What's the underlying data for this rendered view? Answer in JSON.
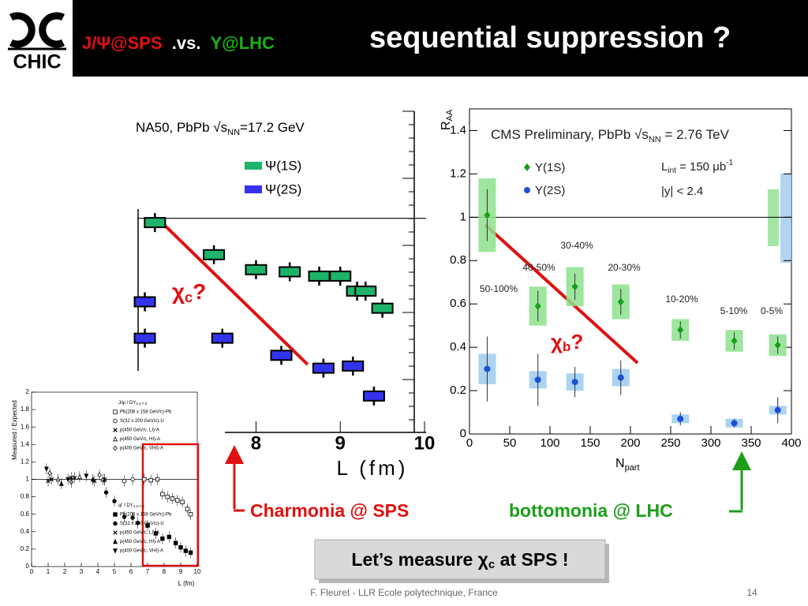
{
  "header": {
    "logo": "CHIC",
    "title_parts": [
      "J/Ψ@SPS",
      ".vs.",
      "Υ@LHC"
    ],
    "subtitle": "sequential suppression ?"
  },
  "chart_data": [
    {
      "type": "scatter",
      "title_parts": {
        "pre": "NA50, PbPb √s",
        "sub": "NN",
        "post": "=17.2 GeV"
      },
      "xlabel": "L (fm)",
      "xlim": [
        6.6,
        10
      ],
      "xticks": [
        8,
        9,
        10
      ],
      "ylim": [
        0,
        1.5
      ],
      "reference_line": 1,
      "series": [
        {
          "name": "Ψ(1S)",
          "color": "#1db36a",
          "x": [
            6.8,
            7.5,
            8.0,
            8.4,
            8.75,
            9.0,
            9.2,
            9.3,
            9.5
          ],
          "values": [
            0.98,
            0.83,
            0.76,
            0.75,
            0.73,
            0.73,
            0.66,
            0.66,
            0.58
          ]
        },
        {
          "name": "Ψ(2S)",
          "color": "#3333ee",
          "x": [
            6.68,
            6.68,
            7.6,
            8.3,
            8.8,
            9.15,
            9.4
          ],
          "values": [
            0.61,
            0.44,
            0.44,
            0.36,
            0.3,
            0.31,
            0.17
          ]
        }
      ],
      "annotation": {
        "chi": "χ",
        "sub": "c",
        "q": "?"
      }
    },
    {
      "type": "scatter",
      "title_parts": {
        "pre": "CMS Preliminary, PbPb √s",
        "sub": "NN",
        "post": " = 2.76 TeV"
      },
      "lumi": {
        "pre": "L",
        "sub": "int",
        "mid": " = 150 μb",
        "sup": "-1"
      },
      "rapidity": "|y| < 2.4",
      "ylabel": {
        "main": "R",
        "sub": "AA"
      },
      "xlabel": {
        "main": "N",
        "sub": "part"
      },
      "xlim": [
        0,
        400
      ],
      "xticks": [
        0,
        50,
        100,
        150,
        200,
        250,
        300,
        350,
        400
      ],
      "ylim": [
        0,
        1.5
      ],
      "yticks": [
        0,
        0.2,
        0.4,
        0.6,
        0.8,
        1,
        1.2,
        1.4
      ],
      "reference_line": 1,
      "centrality": [
        "50-100%",
        "40-50%",
        "30-40%",
        "20-30%",
        "10-20%",
        "5-10%",
        "0-5%"
      ],
      "series": [
        {
          "name": "Υ(1S)",
          "color": "#1a9e1a",
          "box_color": "#8de08d",
          "marker": "diamond",
          "x": [
            22,
            85,
            131,
            188,
            262,
            329,
            383
          ],
          "values": [
            1.01,
            0.59,
            0.68,
            0.61,
            0.48,
            0.43,
            0.41
          ],
          "errors": [
            0.12,
            0.07,
            0.06,
            0.06,
            0.04,
            0.04,
            0.04
          ],
          "sys": [
            0.17,
            0.09,
            0.09,
            0.08,
            0.05,
            0.05,
            0.05
          ]
        },
        {
          "name": "Υ(2S)",
          "color": "#1f4fd6",
          "box_color": "#9ccbf0",
          "marker": "circle",
          "x": [
            22,
            85,
            131,
            188,
            262,
            329,
            383
          ],
          "values": [
            0.3,
            0.25,
            0.24,
            0.26,
            0.07,
            0.05,
            0.11
          ],
          "errors": [
            0.15,
            0.12,
            0.07,
            0.08,
            0.03,
            0.02,
            0.06
          ],
          "sys": [
            0.07,
            0.04,
            0.04,
            0.04,
            0.02,
            0.02,
            0.02
          ]
        }
      ],
      "annotation": {
        "chi": "χ",
        "sub": "b",
        "q": "?"
      }
    },
    {
      "type": "scatter",
      "xlabel": "L (fm)",
      "ylabel": "Measured / Expected",
      "xlim": [
        0,
        10
      ],
      "xticks": [
        0,
        1,
        2,
        3,
        4,
        5,
        6,
        7,
        8,
        9,
        10
      ],
      "ylim": [
        0,
        2
      ],
      "yticks": [
        0,
        0.2,
        0.4,
        0.6,
        0.8,
        1,
        1.2,
        1.4,
        1.6,
        1.8,
        2
      ],
      "reference_line": 1,
      "legend_titles": [
        {
          "text": "J/ψ / DY",
          "sub": "4.2-7.0"
        },
        {
          "text": "ψ' / DY",
          "sub": "4.2-7.0"
        }
      ],
      "series": [
        {
          "name": "Pb(208 x 158 GeV/c)-Pb",
          "marker": "square",
          "filled": false,
          "x": [
            6.8,
            7.2,
            7.6,
            7.9,
            8.2,
            8.5,
            8.8,
            9.1,
            9.4,
            9.6
          ],
          "values": [
            1.0,
            0.99,
            1.0,
            0.83,
            0.8,
            0.78,
            0.76,
            0.74,
            0.66,
            0.6
          ]
        },
        {
          "name": "S(32 x 200 GeV/c)-U",
          "marker": "circle",
          "filled": false,
          "x": [
            4.4,
            5.6,
            6.1
          ],
          "values": [
            0.99,
            0.98,
            1.0
          ]
        },
        {
          "name": "p(450 GeV/c, LI)-A",
          "marker": "cross",
          "filled": false,
          "x": [
            1.2,
            2.6,
            3.8
          ],
          "values": [
            1.0,
            1.02,
            0.98
          ]
        },
        {
          "name": "p(450 GeV/c, HI)-A",
          "marker": "triangle",
          "filled": false,
          "x": [
            1.6,
            2.9,
            4.3
          ],
          "values": [
            1.0,
            1.03,
            1.0
          ]
        },
        {
          "name": "p(400 GeV/c, VHI)-A",
          "marker": "diamond",
          "filled": false,
          "x": [
            1.1,
            2.4,
            4.1
          ],
          "values": [
            1.07,
            0.97,
            1.05
          ]
        },
        {
          "name": "Pb(208 x 158 GeV/c)-Pb",
          "marker": "square",
          "filled": true,
          "x": [
            7.0,
            7.5,
            7.9,
            8.3,
            8.7,
            9.0,
            9.3,
            9.6
          ],
          "values": [
            0.47,
            0.38,
            0.32,
            0.34,
            0.27,
            0.22,
            0.18,
            0.16
          ]
        },
        {
          "name": "S(32 x 200 GeV/c)-U",
          "marker": "circle",
          "filled": true,
          "x": [
            4.5,
            5.0,
            5.6,
            6.1,
            6.4
          ],
          "values": [
            0.85,
            0.75,
            0.57,
            0.56,
            0.5
          ]
        },
        {
          "name": "p(450 GeV/c, LI)-A",
          "marker": "cross",
          "filled": true,
          "x": [
            1.0,
            2.4,
            4.4
          ],
          "values": [
            0.98,
            1.02,
            1.0
          ]
        },
        {
          "name": "p(450 GeV/c, HI)-A",
          "marker": "triangle",
          "filled": true,
          "x": [
            1.8,
            3.7
          ],
          "values": [
            0.95,
            1.0
          ]
        },
        {
          "name": "p(400 GeV/c, VHI)-A",
          "marker": "triangle-down",
          "filled": true,
          "x": [
            0.9,
            2.2,
            3.3
          ],
          "values": [
            1.12,
            1.0,
            1.04
          ]
        }
      ]
    }
  ],
  "annotations": {
    "charmonia": "Charmonia @ SPS",
    "bottomonia": "bottomonia @ LHC",
    "callout": {
      "pre": "Let’s measure ",
      "chi": "χ",
      "sub": "c",
      "post": " at SPS !"
    }
  },
  "footer": {
    "author": "F. Fleuret - LLR Ecole polytechnique, France",
    "page": "14"
  }
}
